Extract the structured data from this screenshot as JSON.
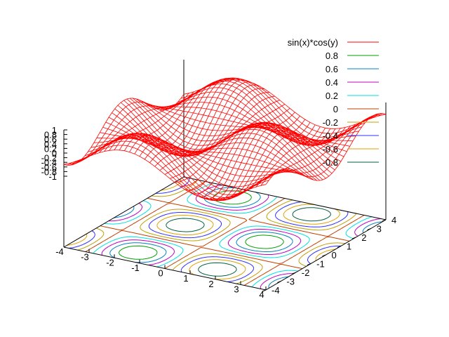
{
  "chart_data": {
    "type": "surface-3d",
    "title": "",
    "function": "sin(x)*cos(y)",
    "xrange": [
      -4,
      4
    ],
    "yrange": [
      -4,
      4
    ],
    "zrange": [
      -1,
      1
    ],
    "grid_samples": 40,
    "x_tick_labels": [
      "-4",
      "-3",
      "-2",
      "-1",
      "0",
      "1",
      "2",
      "3",
      "4"
    ],
    "y_tick_labels": [
      "-4",
      "-3",
      "-2",
      "-1",
      "0",
      "1",
      "2",
      "3",
      "4"
    ],
    "z_tick_labels": [
      "1",
      "0.8",
      "0.6",
      "0.4",
      "0.2",
      "0",
      "-0.2",
      "-0.4",
      "-0.6",
      "-0.8",
      "-1"
    ],
    "legend_placement": "top-right",
    "legend": [
      {
        "label": "sin(x)*cos(y)",
        "color": "#ff0000"
      },
      {
        "label": "0.8",
        "color": "#00a000",
        "level": 0.8
      },
      {
        "label": "0.6",
        "color": "#0080c0",
        "level": 0.6
      },
      {
        "label": "0.4",
        "color": "#c000c0",
        "level": 0.4
      },
      {
        "label": "0.2",
        "color": "#00e0e0",
        "level": 0.2
      },
      {
        "label": "0",
        "color": "#c04000",
        "level": 0.0
      },
      {
        "label": "-0.2",
        "color": "#c0a000",
        "level": -0.2
      },
      {
        "label": "-0.4",
        "color": "#3030ff",
        "level": -0.4
      },
      {
        "label": "-0.6",
        "color": "#e0a000",
        "level": -0.6
      },
      {
        "label": "-0.8",
        "color": "#006040",
        "level": -0.8
      }
    ]
  }
}
